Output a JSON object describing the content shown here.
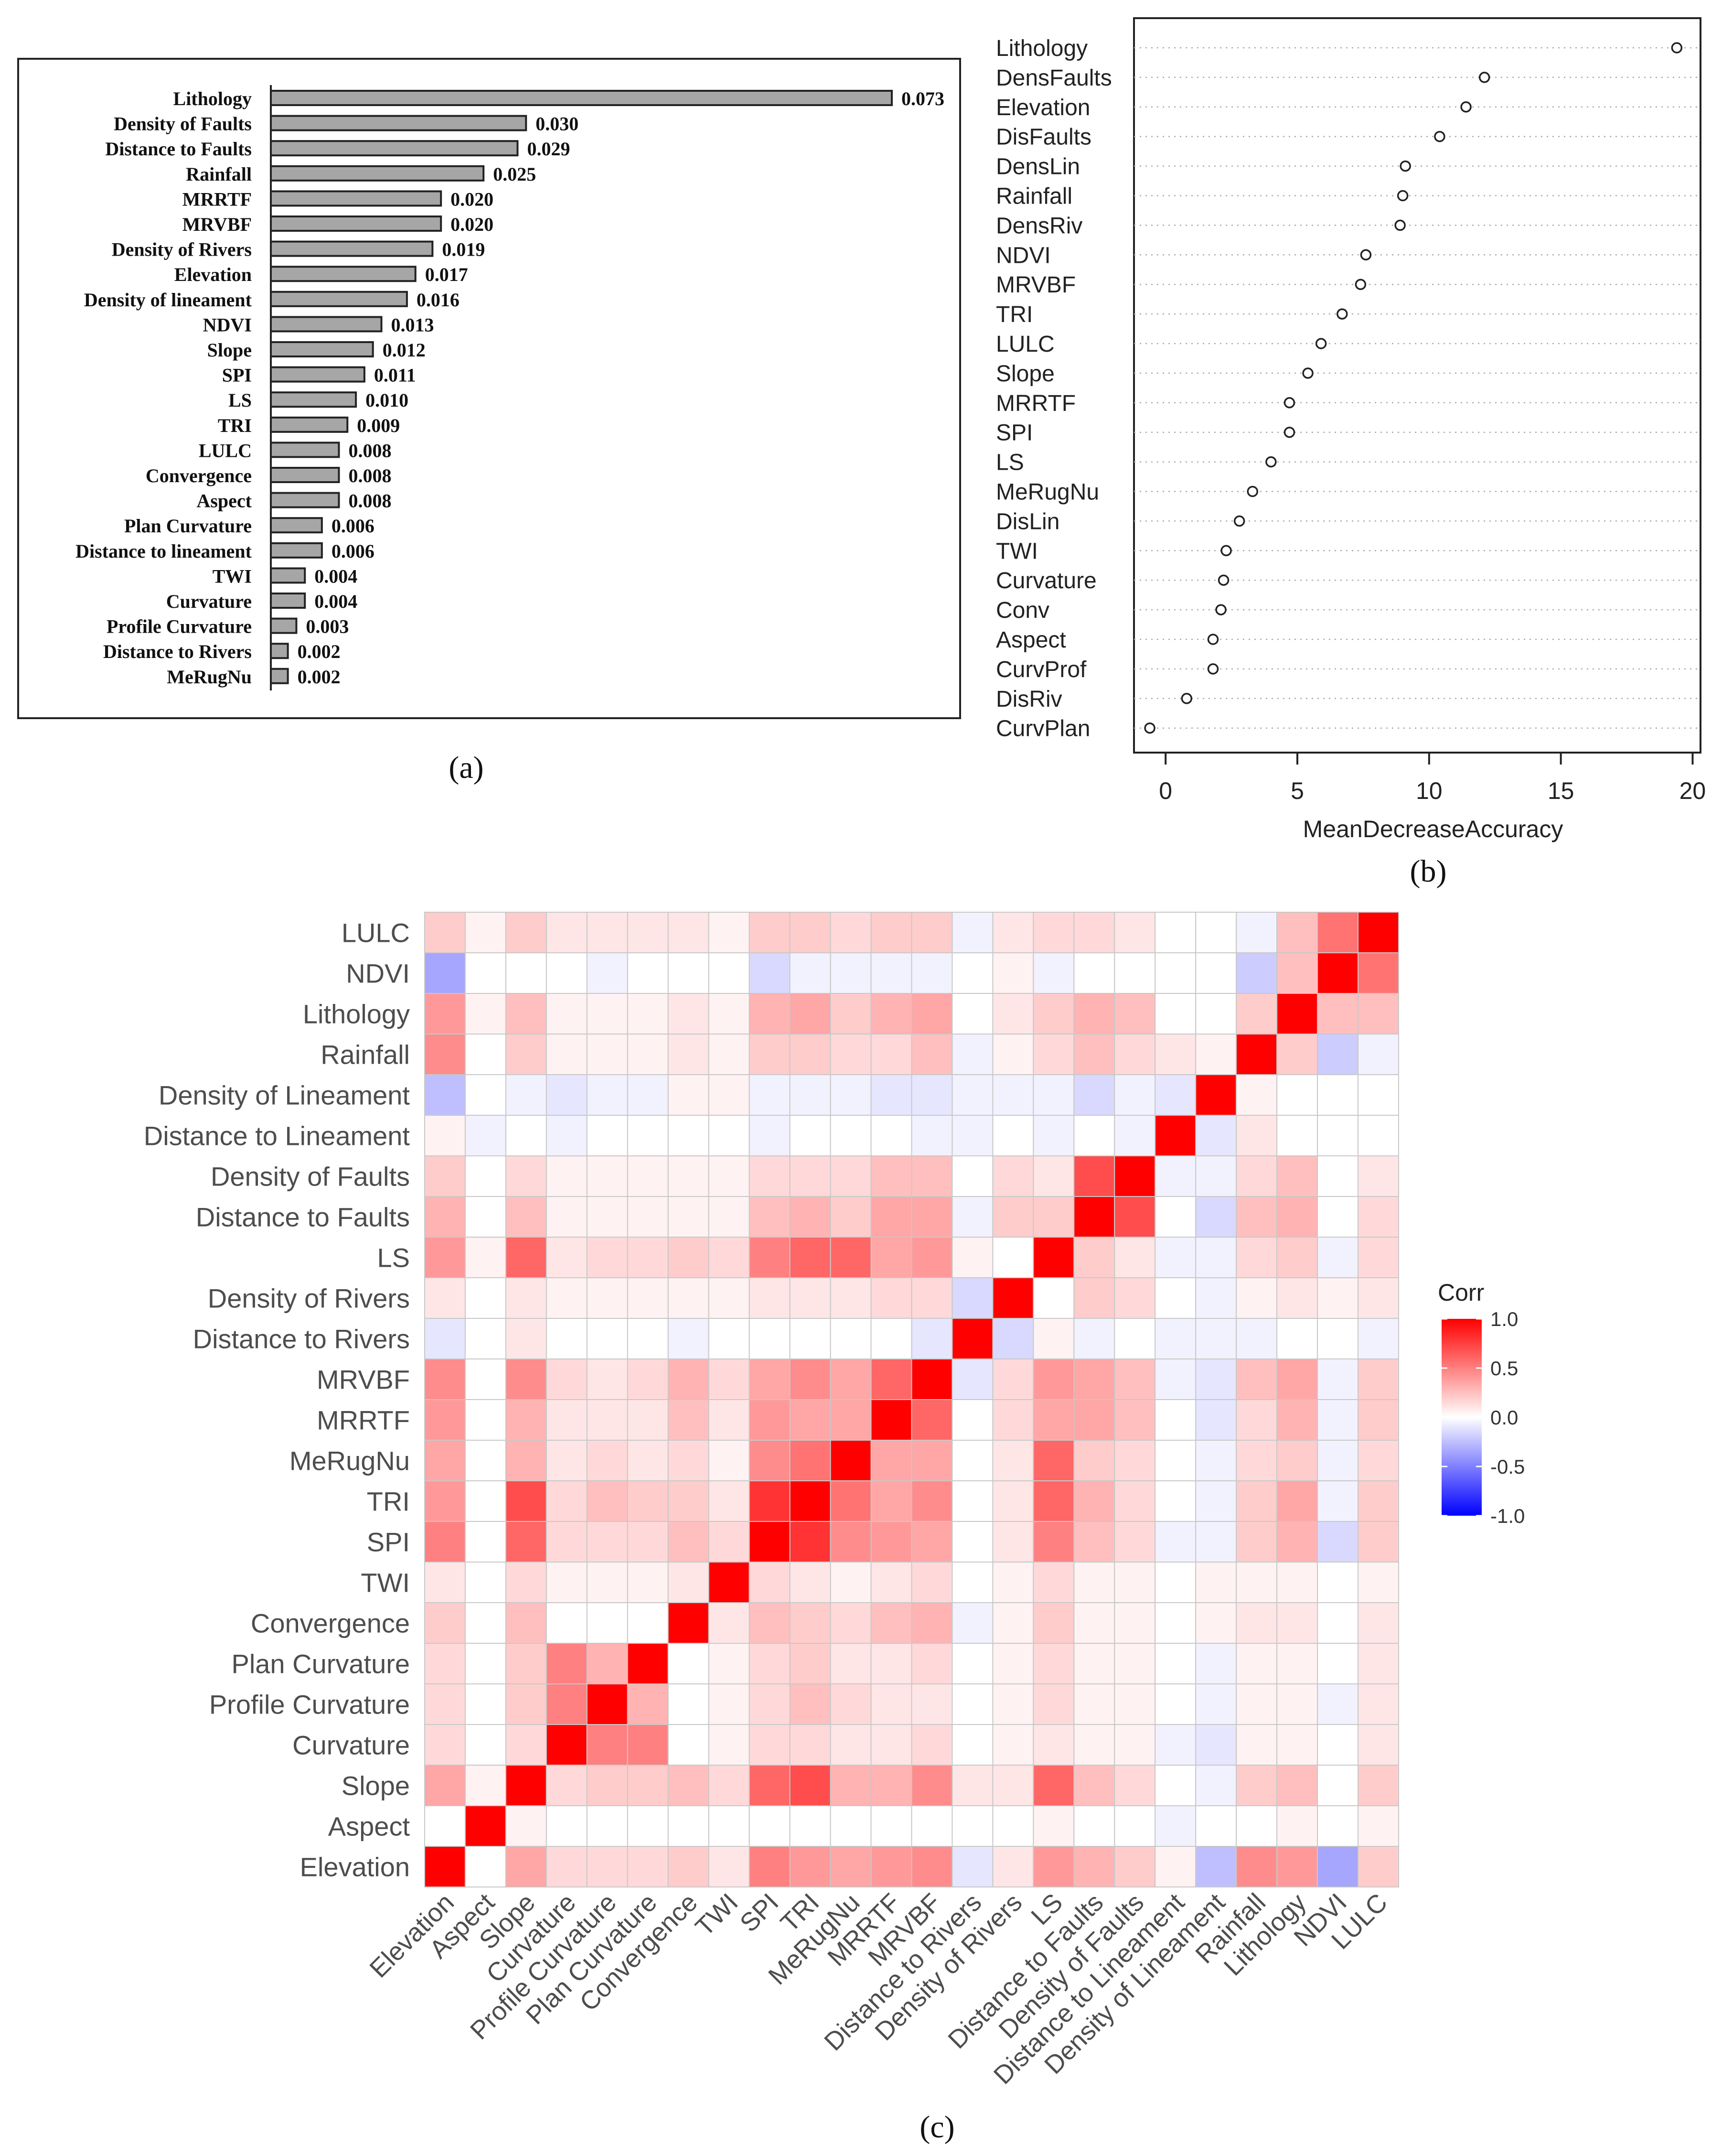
{
  "colors": {
    "bar_fill": "#a6a6a6",
    "bar_stroke": "#222222",
    "dot_stroke": "#222222",
    "grid": "#aaaaaa",
    "heat_high": "#ff0000",
    "heat_mid": "#ffffff",
    "heat_low": "#0000ff",
    "cell_border": "#c8c8c8",
    "text_gray": "#4d4d4d"
  },
  "panel_labels": {
    "a": "(a)",
    "b": "(b)",
    "c": "(c)"
  },
  "chart_data": [
    {
      "id": "a",
      "type": "bar",
      "orientation": "horizontal",
      "categories": [
        "Lithology",
        "Density of Faults",
        "Distance to Faults",
        "Rainfall",
        "MRRTF",
        "MRVBF",
        "Density of Rivers",
        "Elevation",
        "Density of lineament",
        "NDVI",
        "Slope",
        "SPI",
        "LS",
        "TRI",
        "LULC",
        "Convergence",
        "Aspect",
        "Plan Curvature",
        "Distance to lineament",
        "TWI",
        "Curvature",
        "Profile Curvature",
        "Distance to Rivers",
        "MeRugNu"
      ],
      "values": [
        0.073,
        0.03,
        0.029,
        0.025,
        0.02,
        0.02,
        0.019,
        0.017,
        0.016,
        0.013,
        0.012,
        0.011,
        0.01,
        0.009,
        0.008,
        0.008,
        0.008,
        0.006,
        0.006,
        0.004,
        0.004,
        0.003,
        0.002,
        0.002
      ],
      "value_labels": [
        "0.073",
        "0.030",
        "0.029",
        "0.025",
        "0.020",
        "0.020",
        "0.019",
        "0.017",
        "0.016",
        "0.013",
        "0.012",
        "0.011",
        "0.010",
        "0.009",
        "0.008",
        "0.008",
        "0.008",
        "0.006",
        "0.006",
        "0.004",
        "0.004",
        "0.003",
        "0.002",
        "0.002"
      ],
      "xlim": [
        0,
        0.073
      ],
      "title": "",
      "xlabel": "",
      "ylabel": ""
    },
    {
      "id": "b",
      "type": "scatter",
      "subtype": "dotchart",
      "categories": [
        "Lithology",
        "DensFaults",
        "Elevation",
        "DisFaults",
        "DensLin",
        "Rainfall",
        "DensRiv",
        "NDVI",
        "MRVBF",
        "TRI",
        "LULC",
        "Slope",
        "MRRTF",
        "SPI",
        "LS",
        "MeRugNu",
        "DisLin",
        "TWI",
        "Curvature",
        "Conv",
        "Aspect",
        "CurvProf",
        "DisRiv",
        "CurvPlan"
      ],
      "values": [
        19.4,
        12.1,
        11.4,
        10.4,
        9.1,
        9.0,
        8.9,
        7.6,
        7.4,
        6.7,
        5.9,
        5.4,
        4.7,
        4.7,
        4.0,
        3.3,
        2.8,
        2.3,
        2.2,
        2.1,
        1.8,
        1.8,
        0.8,
        -0.6
      ],
      "xlim": [
        -1.2,
        20.3
      ],
      "xticks": [
        0,
        5,
        10,
        15,
        20
      ],
      "xtick_labels": [
        "0",
        "5",
        "10",
        "15",
        "20"
      ],
      "xlabel": "MeanDecreaseAccuracy",
      "title": "",
      "ylabel": ""
    },
    {
      "id": "c",
      "type": "heatmap",
      "labels": [
        "Elevation",
        "Aspect",
        "Slope",
        "Curvature",
        "Profile Curvature",
        "Plan Curvature",
        "Convergence",
        "TWI",
        "SPI",
        "TRI",
        "MeRugNu",
        "MRRTF",
        "MRVBF",
        "Distance to Rivers",
        "Density of Rivers",
        "LS",
        "Distance to Faults",
        "Density of Faults",
        "Distance to Lineament",
        "Density of Lineament",
        "Rainfall",
        "Lithology",
        "NDVI",
        "LULC"
      ],
      "matrix": [
        [
          1.0,
          0.0,
          0.35,
          0.15,
          0.15,
          0.15,
          0.2,
          0.1,
          0.5,
          0.4,
          0.35,
          0.4,
          0.45,
          -0.1,
          0.1,
          0.4,
          0.3,
          0.2,
          0.05,
          -0.25,
          0.45,
          0.4,
          -0.35,
          0.2
        ],
        [
          0.0,
          1.0,
          0.05,
          0.0,
          0.0,
          0.0,
          0.0,
          0.0,
          0.0,
          0.0,
          0.0,
          0.0,
          0.0,
          0.0,
          0.0,
          0.05,
          0.0,
          0.0,
          -0.05,
          0.0,
          0.0,
          0.05,
          0.0,
          0.05
        ],
        [
          0.35,
          0.05,
          1.0,
          0.15,
          0.2,
          0.2,
          0.25,
          0.15,
          0.6,
          0.7,
          0.3,
          0.3,
          0.45,
          0.1,
          0.1,
          0.6,
          0.25,
          0.15,
          0.0,
          -0.05,
          0.2,
          0.25,
          0.0,
          0.2
        ],
        [
          0.15,
          0.0,
          0.15,
          1.0,
          0.5,
          0.5,
          0.0,
          0.05,
          0.15,
          0.15,
          0.1,
          0.1,
          0.15,
          0.0,
          0.05,
          0.1,
          0.05,
          0.05,
          -0.05,
          -0.1,
          0.05,
          0.05,
          0.0,
          0.1
        ],
        [
          0.15,
          0.0,
          0.2,
          0.5,
          1.0,
          0.3,
          0.0,
          0.05,
          0.15,
          0.25,
          0.15,
          0.1,
          0.1,
          0.0,
          0.05,
          0.15,
          0.05,
          0.05,
          0.0,
          -0.05,
          0.05,
          0.05,
          -0.05,
          0.1
        ],
        [
          0.15,
          0.0,
          0.2,
          0.5,
          0.3,
          1.0,
          0.0,
          0.05,
          0.15,
          0.2,
          0.1,
          0.1,
          0.15,
          0.0,
          0.05,
          0.15,
          0.05,
          0.05,
          0.0,
          -0.05,
          0.05,
          0.05,
          0.0,
          0.1
        ],
        [
          0.2,
          0.0,
          0.25,
          0.0,
          0.0,
          0.0,
          1.0,
          0.1,
          0.25,
          0.2,
          0.15,
          0.25,
          0.3,
          -0.05,
          0.05,
          0.2,
          0.05,
          0.05,
          0.0,
          0.05,
          0.1,
          0.1,
          0.0,
          0.1
        ],
        [
          0.1,
          0.0,
          0.15,
          0.05,
          0.05,
          0.05,
          0.1,
          1.0,
          0.15,
          0.1,
          0.05,
          0.1,
          0.15,
          0.0,
          0.05,
          0.15,
          0.05,
          0.05,
          0.0,
          0.05,
          0.05,
          0.05,
          0.0,
          0.05
        ],
        [
          0.5,
          0.0,
          0.6,
          0.15,
          0.15,
          0.15,
          0.25,
          0.15,
          1.0,
          0.8,
          0.45,
          0.4,
          0.35,
          0.0,
          0.1,
          0.5,
          0.25,
          0.15,
          -0.05,
          -0.05,
          0.2,
          0.3,
          -0.15,
          0.2
        ],
        [
          0.4,
          0.0,
          0.7,
          0.15,
          0.25,
          0.2,
          0.2,
          0.1,
          0.8,
          1.0,
          0.55,
          0.35,
          0.45,
          0.0,
          0.1,
          0.6,
          0.3,
          0.15,
          0.0,
          -0.05,
          0.2,
          0.35,
          -0.05,
          0.2
        ],
        [
          0.35,
          0.0,
          0.3,
          0.1,
          0.15,
          0.1,
          0.15,
          0.05,
          0.45,
          0.55,
          1.0,
          0.35,
          0.35,
          0.0,
          0.1,
          0.6,
          0.2,
          0.15,
          0.0,
          -0.05,
          0.15,
          0.2,
          -0.05,
          0.15
        ],
        [
          0.4,
          0.0,
          0.3,
          0.1,
          0.1,
          0.1,
          0.25,
          0.1,
          0.4,
          0.35,
          0.35,
          1.0,
          0.6,
          0.0,
          0.15,
          0.35,
          0.35,
          0.25,
          0.0,
          -0.1,
          0.15,
          0.3,
          -0.05,
          0.2
        ],
        [
          0.45,
          0.0,
          0.45,
          0.15,
          0.1,
          0.15,
          0.3,
          0.15,
          0.35,
          0.45,
          0.35,
          0.6,
          1.0,
          -0.1,
          0.15,
          0.4,
          0.35,
          0.25,
          -0.05,
          -0.1,
          0.25,
          0.35,
          -0.05,
          0.2
        ],
        [
          -0.1,
          0.0,
          0.1,
          0.0,
          0.0,
          0.0,
          -0.05,
          0.0,
          0.0,
          0.0,
          0.0,
          0.0,
          -0.1,
          1.0,
          -0.15,
          0.05,
          -0.05,
          0.0,
          -0.05,
          -0.05,
          -0.05,
          0.0,
          0.0,
          -0.05
        ],
        [
          0.1,
          0.0,
          0.1,
          0.05,
          0.05,
          0.05,
          0.05,
          0.05,
          0.1,
          0.1,
          0.1,
          0.15,
          0.15,
          -0.15,
          1.0,
          0.0,
          0.2,
          0.15,
          0.0,
          -0.05,
          0.05,
          0.1,
          0.05,
          0.1
        ],
        [
          0.4,
          0.05,
          0.6,
          0.1,
          0.15,
          0.15,
          0.2,
          0.15,
          0.5,
          0.6,
          0.6,
          0.35,
          0.4,
          0.05,
          0.0,
          1.0,
          0.2,
          0.1,
          -0.05,
          -0.05,
          0.15,
          0.2,
          -0.05,
          0.15
        ],
        [
          0.3,
          0.0,
          0.25,
          0.05,
          0.05,
          0.05,
          0.05,
          0.05,
          0.25,
          0.3,
          0.2,
          0.35,
          0.35,
          -0.05,
          0.2,
          0.2,
          1.0,
          0.7,
          0.0,
          -0.15,
          0.25,
          0.3,
          0.0,
          0.15
        ],
        [
          0.2,
          0.0,
          0.15,
          0.05,
          0.05,
          0.05,
          0.05,
          0.05,
          0.15,
          0.15,
          0.15,
          0.25,
          0.25,
          0.0,
          0.15,
          0.1,
          0.7,
          1.0,
          -0.05,
          -0.05,
          0.15,
          0.25,
          0.0,
          0.1
        ],
        [
          0.05,
          -0.05,
          0.0,
          -0.05,
          0.0,
          0.0,
          0.0,
          0.0,
          -0.05,
          0.0,
          0.0,
          0.0,
          -0.05,
          -0.05,
          0.0,
          -0.05,
          0.0,
          -0.05,
          1.0,
          -0.1,
          0.1,
          0.0,
          0.0,
          0.0
        ],
        [
          -0.25,
          0.0,
          -0.05,
          -0.1,
          -0.05,
          -0.05,
          0.05,
          0.05,
          -0.05,
          -0.05,
          -0.05,
          -0.1,
          -0.1,
          -0.05,
          -0.05,
          -0.05,
          -0.15,
          -0.05,
          -0.1,
          1.0,
          0.05,
          0.0,
          0.0,
          0.0
        ],
        [
          0.45,
          0.0,
          0.2,
          0.05,
          0.05,
          0.05,
          0.1,
          0.05,
          0.2,
          0.2,
          0.15,
          0.15,
          0.25,
          -0.05,
          0.05,
          0.15,
          0.25,
          0.15,
          0.1,
          0.05,
          1.0,
          0.2,
          -0.2,
          -0.05
        ],
        [
          0.4,
          0.05,
          0.25,
          0.05,
          0.05,
          0.05,
          0.1,
          0.05,
          0.3,
          0.35,
          0.2,
          0.3,
          0.35,
          0.0,
          0.1,
          0.2,
          0.3,
          0.25,
          0.0,
          0.0,
          0.2,
          1.0,
          0.25,
          0.25
        ],
        [
          -0.35,
          0.0,
          0.0,
          0.0,
          -0.05,
          0.0,
          0.0,
          0.0,
          -0.15,
          -0.05,
          -0.05,
          -0.05,
          -0.05,
          0.0,
          0.05,
          -0.05,
          0.0,
          0.0,
          0.0,
          0.0,
          -0.2,
          0.25,
          1.0,
          0.55
        ],
        [
          0.2,
          0.05,
          0.2,
          0.1,
          0.1,
          0.1,
          0.1,
          0.05,
          0.2,
          0.2,
          0.15,
          0.2,
          0.2,
          -0.05,
          0.1,
          0.15,
          0.15,
          0.1,
          0.0,
          0.0,
          -0.05,
          0.25,
          0.55,
          1.0
        ]
      ],
      "legend_title": "Corr",
      "legend_ticks": [
        1.0,
        0.5,
        0.0,
        -0.5,
        -1.0
      ],
      "legend_tick_labels": [
        "1.0",
        "0.5",
        "0.0",
        "-0.5",
        "-1.0"
      ],
      "legend_placement": "right",
      "zlim": [
        -1,
        1
      ]
    }
  ]
}
